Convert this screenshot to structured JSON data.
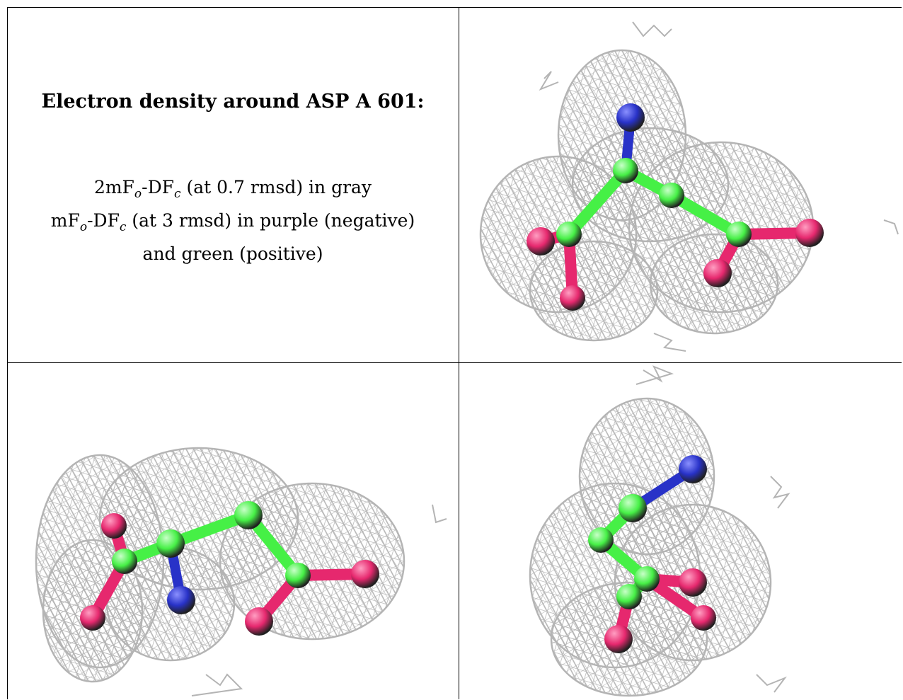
{
  "caption": {
    "title": "Electron density around ASP A 601:",
    "legend_line1": "2mF",
    "legend_line1_sub1": "o",
    "legend_line1_mid": "-DF",
    "legend_line1_sub2": "c",
    "legend_line1_tail": " (at 0.7 rmsd) in gray",
    "legend_line2": "mF",
    "legend_line2_sub1": "o",
    "legend_line2_mid": "-DF",
    "legend_line2_sub2": "c",
    "legend_line2_tail": " (at 3 rmsd) in purple (negative)",
    "legend_line3": "and green (positive)"
  },
  "colors": {
    "mesh": "#b4b4b4",
    "carbon": "#46f046",
    "oxygen": "#e6286e",
    "nitrogen": "#2832c8"
  },
  "views": [
    "view-top-right",
    "view-bottom-left",
    "view-bottom-right"
  ]
}
